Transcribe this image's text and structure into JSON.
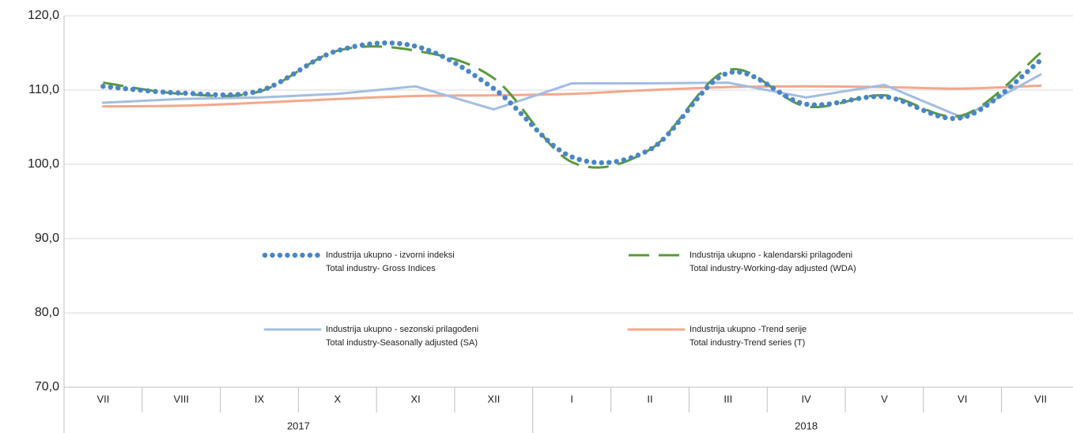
{
  "chart_data": {
    "type": "line",
    "category_groups": [
      {
        "label": "2017",
        "categories": [
          "VII",
          "VIII",
          "IX",
          "X",
          "XI",
          "XII"
        ]
      },
      {
        "label": "2018",
        "categories": [
          "I",
          "II",
          "III",
          "IV",
          "V",
          "VI",
          "VII"
        ]
      }
    ],
    "ylim": [
      70,
      120
    ],
    "yticks": [
      {
        "value": 70,
        "label": "70,0"
      },
      {
        "value": 80,
        "label": "80,0"
      },
      {
        "value": 90,
        "label": "90,0"
      },
      {
        "value": 100,
        "label": "100,0"
      },
      {
        "value": 110,
        "label": "110,0"
      },
      {
        "value": 120,
        "label": "120,0"
      }
    ],
    "grid": true,
    "series": [
      {
        "name": [
          "Industrija ukupno - izvorni indeksi",
          "Total industry- Gross Indices"
        ],
        "color": "#4a86c5",
        "style": "dotted",
        "smooth": true,
        "values": [
          110.5,
          109.6,
          109.9,
          115.3,
          115.9,
          110.2,
          101.0,
          102.0,
          112.3,
          108.1,
          109.1,
          106.3,
          114.0
        ]
      },
      {
        "name": [
          "Industrija ukupno - kalendarski prilagođeni",
          "Total industry-Working-day adjusted (WDA)"
        ],
        "color": "#5a9a3a",
        "style": "dashed",
        "smooth": true,
        "values": [
          111.0,
          109.5,
          109.8,
          115.3,
          115.3,
          111.6,
          100.3,
          102.0,
          112.7,
          107.8,
          109.3,
          106.6,
          115.0
        ]
      },
      {
        "name": [
          "Industrija ukupno - sezonski prilagođeni",
          "Total industry-Seasonally adjusted (SA)"
        ],
        "color": "#a3bde3",
        "style": "solid",
        "smooth": false,
        "values": [
          108.3,
          108.8,
          109.0,
          109.5,
          110.5,
          107.4,
          110.9,
          110.9,
          111.0,
          109.0,
          110.7,
          106.3,
          112.1
        ]
      },
      {
        "name": [
          "Industrija ukupno -Trend serije",
          "Total industry-Trend series (T)"
        ],
        "color": "#f4a78c",
        "style": "solid",
        "smooth": true,
        "values": [
          107.8,
          107.9,
          108.3,
          108.8,
          109.2,
          109.3,
          109.5,
          110.0,
          110.4,
          110.5,
          110.4,
          110.2,
          110.6
        ]
      }
    ]
  }
}
